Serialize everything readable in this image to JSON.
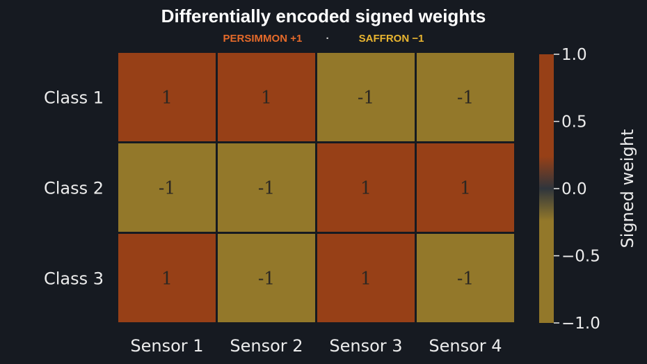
{
  "chart_data": {
    "type": "heatmap",
    "title": "Differentially encoded signed weights",
    "legend": [
      {
        "label": "PERSIMMON +1",
        "color": "#e56a2a"
      },
      {
        "label": "·",
        "color": "#d8d8d8"
      },
      {
        "label": "SAFFRON −1",
        "color": "#e9b530"
      }
    ],
    "rows": [
      "Class 1",
      "Class 2",
      "Class 3"
    ],
    "columns": [
      "Sensor 1",
      "Sensor 2",
      "Sensor 3",
      "Sensor 4"
    ],
    "values": [
      [
        1,
        1,
        -1,
        -1
      ],
      [
        -1,
        -1,
        1,
        1
      ],
      [
        1,
        -1,
        1,
        -1
      ]
    ],
    "cell_labels": [
      [
        "1",
        "1",
        "-1",
        "-1"
      ],
      [
        "-1",
        "-1",
        "1",
        "1"
      ],
      [
        "1",
        "-1",
        "1",
        "-1"
      ]
    ],
    "colorbar": {
      "label": "Signed weight",
      "range": [
        -1.0,
        1.0
      ],
      "ticks": [
        1.0,
        0.5,
        0.0,
        -0.5,
        -1.0
      ],
      "tick_labels": [
        "1.0",
        "0.5",
        "0.0",
        "−0.5",
        "−1.0"
      ],
      "positive_color": "#974017",
      "negative_color": "#93782a",
      "center_color": "#2f353c"
    },
    "colors": {
      "positive": "#974017",
      "negative": "#93782a"
    }
  }
}
